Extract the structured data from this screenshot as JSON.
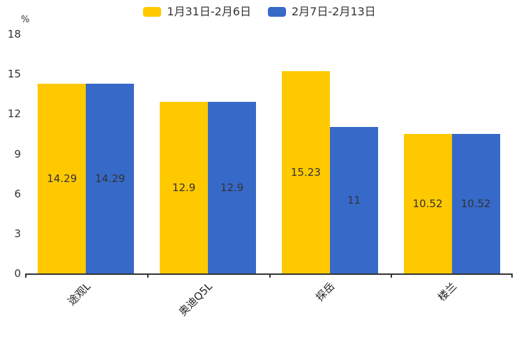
{
  "chart": {
    "y_unit": "%"
  },
  "chart_data": {
    "type": "bar",
    "categories": [
      "途观L",
      "奥迪Q5L",
      "探岳",
      "楼兰"
    ],
    "series": [
      {
        "name": "1月31日-2月6日",
        "color": "#FFC900",
        "values": [
          14.29,
          12.9,
          15.23,
          10.52
        ]
      },
      {
        "name": "2月7日-2月13日",
        "color": "#3769C8",
        "values": [
          14.29,
          12.9,
          11,
          10.52
        ]
      }
    ],
    "value_labels": [
      [
        "14.29",
        "12.9",
        "15.23",
        "10.52"
      ],
      [
        "14.29",
        "12.9",
        "11",
        "10.52"
      ]
    ],
    "title": "",
    "xlabel": "",
    "ylabel": "%",
    "ylim": [
      0,
      18
    ],
    "yticks": [
      0,
      3,
      6,
      9,
      12,
      15,
      18
    ],
    "grid": false,
    "legend_position": "top",
    "axis_color": "#333333",
    "label_color": "#333333"
  }
}
